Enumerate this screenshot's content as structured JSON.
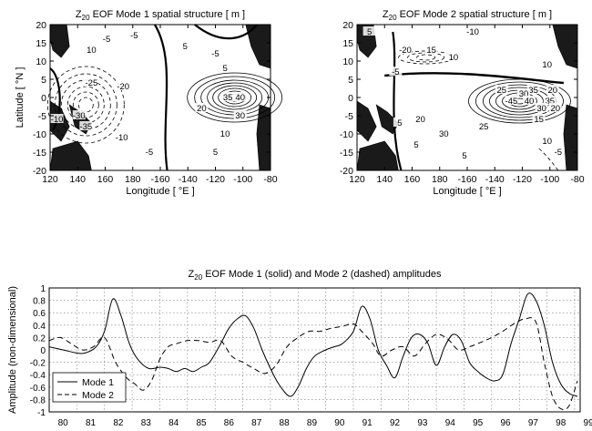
{
  "chart_data": [
    {
      "type": "contour",
      "title_prefix": "Z",
      "title_sub": "20",
      "title_rest": " EOF Mode 1 spatial structure [ m ]",
      "xlabel": "Longitude [ °E ]",
      "ylabel": "Latitude [ °N ]",
      "xticks": [
        "120",
        "140",
        "160",
        "180",
        "-160",
        "-140",
        "-120",
        "-100",
        "-80"
      ],
      "yticks": [
        "20",
        "15",
        "10",
        "5",
        "0",
        "-5",
        "-10",
        "-15",
        "-20"
      ],
      "xlim": [
        120,
        280
      ],
      "ylim": [
        -20,
        20
      ],
      "contour_labels": [
        {
          "text": "10",
          "lon": 150,
          "lat": 13
        },
        {
          "text": "-5",
          "lon": 161,
          "lat": 16
        },
        {
          "text": "-5",
          "lon": 181,
          "lat": 17
        },
        {
          "text": "-25",
          "lon": 150,
          "lat": 4
        },
        {
          "text": "-20",
          "lon": 173,
          "lat": 3
        },
        {
          "text": "-30",
          "lon": 141,
          "lat": -5
        },
        {
          "text": "-10",
          "lon": 125,
          "lat": -6
        },
        {
          "text": "-35",
          "lon": 146,
          "lat": -8
        },
        {
          "text": "-10",
          "lon": 172,
          "lat": -11
        },
        {
          "text": "-5",
          "lon": 192,
          "lat": -15
        },
        {
          "text": "5",
          "lon": 218,
          "lat": 14
        },
        {
          "text": "-5",
          "lon": 240,
          "lat": 12
        },
        {
          "text": "5",
          "lon": 247,
          "lat": 8
        },
        {
          "text": "35",
          "lon": 249,
          "lat": 0
        },
        {
          "text": "40",
          "lon": 258,
          "lat": 0
        },
        {
          "text": "20",
          "lon": 230,
          "lat": -3
        },
        {
          "text": "30",
          "lon": 258,
          "lat": -5
        },
        {
          "text": "10",
          "lon": 247,
          "lat": -10
        },
        {
          "text": "5",
          "lon": 240,
          "lat": -15
        }
      ]
    },
    {
      "type": "contour",
      "title_prefix": "Z",
      "title_sub": "20",
      "title_rest": " EOF Mode 2 spatial structure [ m ]",
      "xlabel": "Longitude [ °E ]",
      "ylabel": "",
      "xticks": [
        "120",
        "140",
        "160",
        "180",
        "-160",
        "-140",
        "-120",
        "-100",
        "-80"
      ],
      "yticks": [
        "20",
        "15",
        "10",
        "5",
        "0",
        "-5",
        "-10",
        "-15",
        "-20"
      ],
      "xlim": [
        120,
        280
      ],
      "ylim": [
        -20,
        20
      ],
      "contour_labels": [
        {
          "text": "5",
          "lon": 129,
          "lat": 18
        },
        {
          "text": "-10",
          "lon": 204,
          "lat": 18
        },
        {
          "text": "-20",
          "lon": 155,
          "lat": 13
        },
        {
          "text": "15",
          "lon": 174,
          "lat": 13
        },
        {
          "text": "10",
          "lon": 190,
          "lat": 11
        },
        {
          "text": "-5",
          "lon": 148,
          "lat": 7
        },
        {
          "text": "10",
          "lon": 258,
          "lat": 9
        },
        {
          "text": "25",
          "lon": 225,
          "lat": 2
        },
        {
          "text": "35",
          "lon": 248,
          "lat": 2
        },
        {
          "text": "30",
          "lon": 241,
          "lat": 1
        },
        {
          "text": "20",
          "lon": 262,
          "lat": 2
        },
        {
          "text": "-45",
          "lon": 232,
          "lat": -1
        },
        {
          "text": "40",
          "lon": 245,
          "lat": -1
        },
        {
          "text": "35",
          "lon": 260,
          "lat": -1
        },
        {
          "text": "30",
          "lon": 254,
          "lat": -3
        },
        {
          "text": "20",
          "lon": 264,
          "lat": -3
        },
        {
          "text": "15",
          "lon": 252,
          "lat": -6
        },
        {
          "text": "20",
          "lon": 166,
          "lat": -6
        },
        {
          "text": "5",
          "lon": 151,
          "lat": -7
        },
        {
          "text": "25",
          "lon": 212,
          "lat": -8
        },
        {
          "text": "30",
          "lon": 183,
          "lat": -10
        },
        {
          "text": "5",
          "lon": 163,
          "lat": -13
        },
        {
          "text": "10",
          "lon": 258,
          "lat": -12
        },
        {
          "text": "5",
          "lon": 198,
          "lat": -16
        },
        {
          "text": "-5",
          "lon": 266,
          "lat": -15
        }
      ]
    },
    {
      "type": "line",
      "title_prefix": "Z",
      "title_sub": "20",
      "title_rest": " EOF Mode 1 (solid) and Mode 2 (dashed) amplitudes",
      "xlabel": "",
      "ylabel": "Amplitude (non-dimensional)",
      "xlim": [
        1980,
        1999.2
      ],
      "ylim": [
        -1.0,
        1.0
      ],
      "xticks": [
        "80",
        "81",
        "82",
        "83",
        "84",
        "85",
        "86",
        "87",
        "88",
        "89",
        "90",
        "91",
        "92",
        "93",
        "94",
        "95",
        "96",
        "97",
        "98",
        "99"
      ],
      "yticks": [
        "1",
        "0.8",
        "0.6",
        "0.4",
        "0.2",
        "0",
        "-0.2",
        "-0.4",
        "-0.6",
        "-0.8",
        "-1"
      ],
      "grid": true,
      "legend_position": "bottom-left",
      "series": [
        {
          "name": "Mode 1",
          "style": "solid",
          "x": [
            1980.0,
            1980.5,
            1981.0,
            1981.3,
            1981.7,
            1982.0,
            1982.3,
            1982.6,
            1982.9,
            1983.2,
            1983.6,
            1984.0,
            1984.3,
            1984.6,
            1984.9,
            1985.2,
            1985.5,
            1985.8,
            1986.2,
            1986.5,
            1986.8,
            1987.1,
            1987.4,
            1987.7,
            1988.0,
            1988.3,
            1988.7,
            1989.0,
            1989.3,
            1989.6,
            1990.0,
            1990.3,
            1990.6,
            1991.0,
            1991.3,
            1991.6,
            1991.9,
            1992.2,
            1992.5,
            1992.8,
            1993.1,
            1993.4,
            1993.7,
            1994.0,
            1994.3,
            1994.6,
            1994.9,
            1995.2,
            1995.5,
            1995.8,
            1996.1,
            1996.4,
            1996.7,
            1997.0,
            1997.3,
            1997.6,
            1997.9,
            1998.2,
            1998.5,
            1998.8,
            1999.1
          ],
          "values": [
            0.05,
            0.0,
            -0.05,
            -0.05,
            0.05,
            0.3,
            0.82,
            0.55,
            0.1,
            -0.15,
            -0.3,
            -0.28,
            -0.3,
            -0.35,
            -0.3,
            -0.35,
            -0.28,
            -0.2,
            0.1,
            0.35,
            0.5,
            0.55,
            0.35,
            0.0,
            -0.3,
            -0.55,
            -0.75,
            -0.6,
            -0.3,
            -0.1,
            0.0,
            0.05,
            0.1,
            0.3,
            0.7,
            0.5,
            0.0,
            -0.25,
            -0.45,
            -0.1,
            0.2,
            0.25,
            0.1,
            -0.25,
            0.05,
            0.25,
            0.15,
            -0.2,
            -0.35,
            -0.45,
            -0.5,
            -0.4,
            0.1,
            0.5,
            0.9,
            0.8,
            0.4,
            -0.2,
            -0.55,
            -0.7,
            -0.75
          ]
        },
        {
          "name": "Mode 2",
          "style": "dashed",
          "x": [
            1980.0,
            1980.4,
            1980.8,
            1981.2,
            1981.6,
            1982.0,
            1982.4,
            1982.8,
            1983.1,
            1983.4,
            1983.7,
            1984.0,
            1984.3,
            1984.6,
            1985.0,
            1985.4,
            1985.8,
            1986.2,
            1986.6,
            1987.0,
            1987.4,
            1987.8,
            1988.2,
            1988.6,
            1989.0,
            1989.4,
            1989.8,
            1990.2,
            1990.6,
            1991.0,
            1991.3,
            1991.7,
            1992.0,
            1992.4,
            1992.8,
            1993.2,
            1993.6,
            1994.0,
            1994.4,
            1994.8,
            1995.2,
            1995.6,
            1996.0,
            1996.4,
            1996.8,
            1997.2,
            1997.6,
            1997.9,
            1998.2,
            1998.5,
            1998.8,
            1999.1
          ],
          "values": [
            0.15,
            0.2,
            0.1,
            0.0,
            0.05,
            0.2,
            -0.2,
            -0.45,
            -0.55,
            -0.65,
            -0.5,
            -0.15,
            0.05,
            0.1,
            0.15,
            0.15,
            0.12,
            0.15,
            -0.1,
            -0.2,
            -0.3,
            -0.38,
            -0.25,
            0.05,
            0.2,
            0.3,
            0.3,
            0.35,
            0.38,
            0.42,
            0.3,
            0.1,
            -0.1,
            0.0,
            0.05,
            -0.1,
            0.1,
            0.25,
            0.18,
            0.0,
            0.05,
            0.12,
            0.2,
            0.3,
            0.42,
            0.5,
            0.45,
            -0.2,
            -0.75,
            -0.95,
            -0.9,
            -0.5
          ]
        }
      ]
    }
  ]
}
